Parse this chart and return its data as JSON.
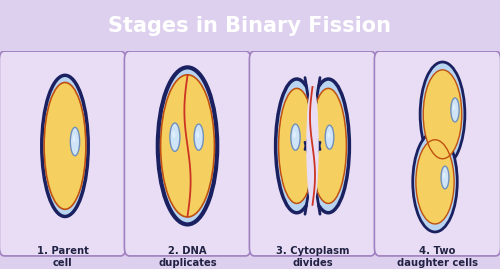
{
  "title": "Stages in Binary Fission",
  "title_bg": "#5b1078",
  "title_color": "#ffffff",
  "main_bg": "#ddd0ee",
  "panel_bg": "#e8ddf5",
  "panel_border": "#a080c0",
  "cell_outer_color": "#1a2060",
  "cell_inner_color": "#b8d4f0",
  "cytoplasm_color": "#f5d060",
  "nucleus_color": "#d0e4f8",
  "nucleus_border": "#7090bb",
  "dividing_line_color": "#cc3322",
  "inner_membrane_color": "#c05010",
  "labels": [
    "1. Parent\ncell",
    "2. DNA\nduplicates",
    "3. Cytoplasm\ndivides",
    "4. Two\ndaughter cells"
  ],
  "figsize": [
    5.0,
    2.69
  ],
  "dpi": 100
}
